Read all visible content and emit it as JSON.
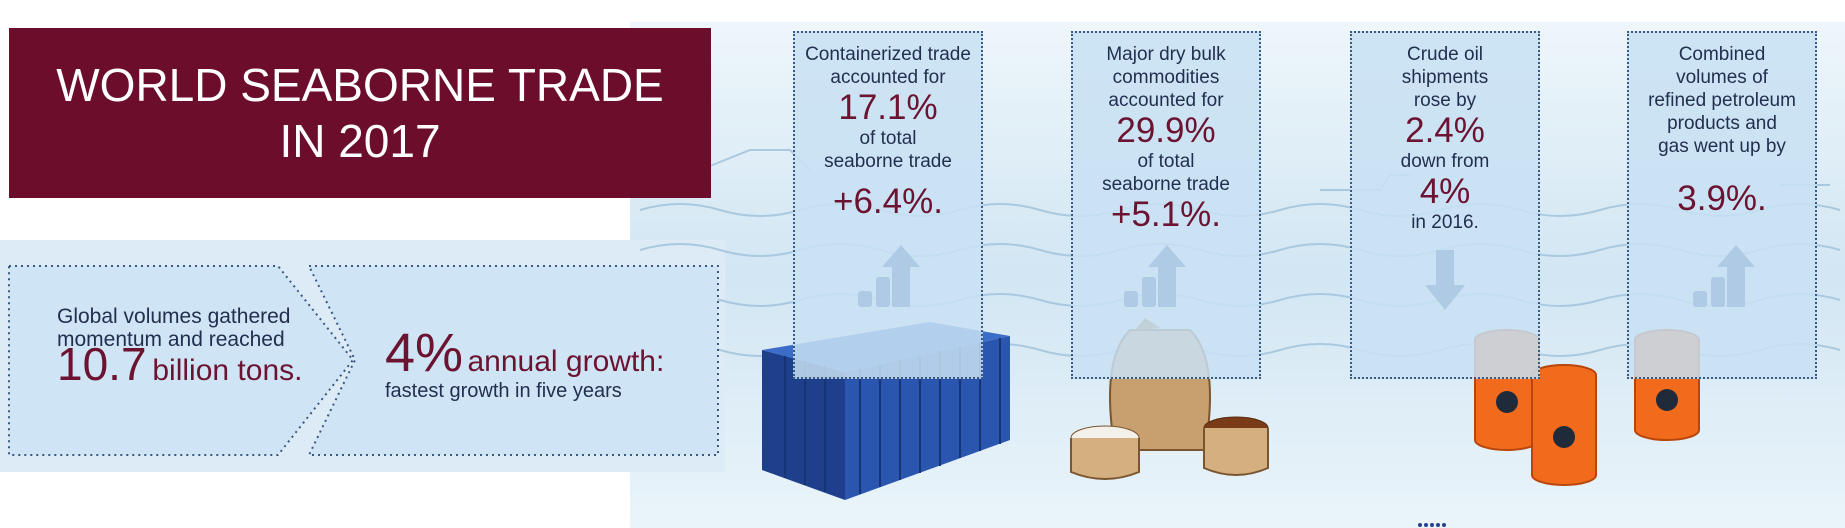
{
  "header": {
    "title_lines": [
      "WORLD SEABORNE TRADE",
      "IN 2017"
    ]
  },
  "summary": {
    "lines": [
      "Global volumes gathered",
      "momentum and reached"
    ],
    "value": "10.7",
    "unit": "billion tons."
  },
  "growth": {
    "value": "4%",
    "label": "annual growth:",
    "note": "fastest growth in five years"
  },
  "panels": [
    {
      "lines": [
        "Containerized trade",
        "accounted for",
        "17.1%",
        "of total",
        "seaborne trade",
        "+6.4%."
      ]
    },
    {
      "lines": [
        "Major dry bulk",
        "commodities",
        "accounted for",
        "29.9%",
        "of total",
        "seaborne trade",
        "+5.1%."
      ]
    },
    {
      "lines": [
        "Crude oil",
        "shipments",
        "rose by",
        "2.4%",
        "down from",
        "4%",
        "in 2016."
      ]
    },
    {
      "lines": [
        "Combined",
        "volumes of",
        "refined petroleum",
        "products and",
        "gas went up by",
        "3.9%."
      ]
    }
  ]
}
